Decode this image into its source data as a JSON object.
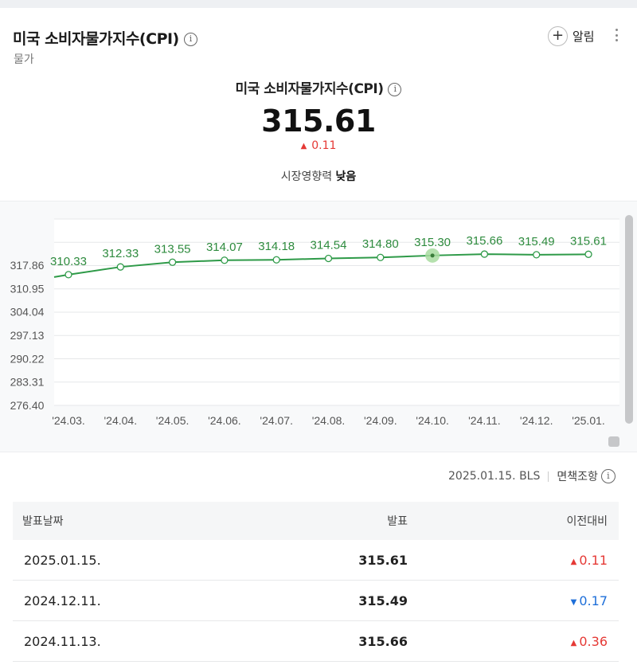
{
  "header": {
    "title": "미국 소비자물가지수(CPI)",
    "category": "물가",
    "alarm_label": "알림"
  },
  "summary": {
    "title": "미국 소비자물가지수(CPI)",
    "value": "315.61",
    "change": "0.11",
    "impact_label": "시장영향력",
    "impact_value": "낮음"
  },
  "chart_data": {
    "type": "line",
    "categories": [
      "'24.03.",
      "'24.04.",
      "'24.05.",
      "'24.06.",
      "'24.07.",
      "'24.08.",
      "'24.09.",
      "'24.10.",
      "'24.11.",
      "'24.12.",
      "'25.01."
    ],
    "series": [
      {
        "values": [
          310.33,
          312.33,
          313.55,
          314.07,
          314.18,
          314.54,
          314.8,
          315.3,
          315.66,
          315.49,
          315.61
        ]
      }
    ],
    "y_ticks": [
      "317.86",
      "310.95",
      "304.04",
      "297.13",
      "290.22",
      "283.31",
      "276.40"
    ],
    "ylim": [
      276.4,
      324.77
    ],
    "grid": true,
    "highlighted_point": "'24.10.",
    "colors": {
      "line": "#2e9a48",
      "label": "#2e8b3e",
      "highlight": "#a8dca0"
    }
  },
  "source": {
    "date": "2025.01.15.",
    "agency": "BLS",
    "disclaimer": "면책조항"
  },
  "table": {
    "headers": [
      "발표날짜",
      "발표",
      "이전대비"
    ],
    "rows": [
      {
        "date": "2025.01.15.",
        "value": "315.61",
        "change": "0.11",
        "direction": "up"
      },
      {
        "date": "2024.12.11.",
        "value": "315.49",
        "change": "0.17",
        "direction": "down"
      },
      {
        "date": "2024.11.13.",
        "value": "315.66",
        "change": "0.36",
        "direction": "up"
      }
    ]
  },
  "colors": {
    "up": "#e53935",
    "down": "#1e6fd9"
  }
}
